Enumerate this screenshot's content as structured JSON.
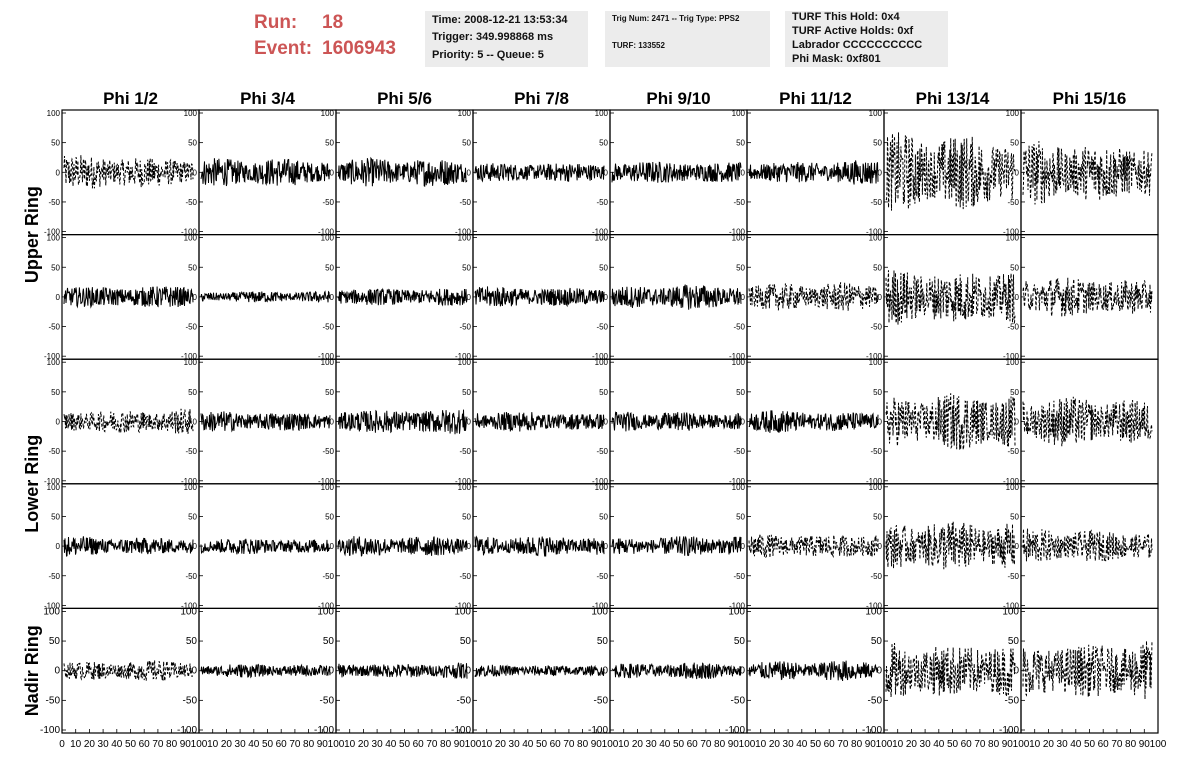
{
  "header": {
    "run_label": "Run:",
    "run_value": "18",
    "event_label": "Event:",
    "event_value": "1606943",
    "time_text": "Time: 2008-12-21 13:53:34",
    "trigger_text": "Trigger: 349.998868 ms",
    "priority_text": "Priority: 5 -- Queue: 5",
    "trig_num_text": "Trig Num: 2471 -- Trig Type: PPS2",
    "turf_text": "TURF: 133552",
    "turf_hold_text": "TURF This Hold: 0x4",
    "turf_active_text": "TURF Active Holds: 0xf",
    "labrador_text": "Labrador CCCCCCCCCC",
    "phi_mask_text": "Phi Mask: 0xf801",
    "accent_color": "#cc5555"
  },
  "chart_data": {
    "type": "line",
    "columns": [
      "Phi 1/2",
      "Phi 3/4",
      "Phi 5/6",
      "Phi 7/8",
      "Phi 9/10",
      "Phi 11/12",
      "Phi 13/14",
      "Phi 15/16"
    ],
    "rows": [
      "Upper Ring",
      "Upper Ring",
      "Lower Ring",
      "Lower Ring",
      "Nadir Ring"
    ],
    "row_titles": [
      {
        "text": "Upper Ring",
        "spans_rows": [
          0,
          1
        ]
      },
      {
        "text": "Lower Ring",
        "spans_rows": [
          2,
          3
        ]
      },
      {
        "text": "Nadir Ring",
        "spans_rows": [
          4
        ]
      }
    ],
    "xlim": [
      0,
      100
    ],
    "ylim": [
      -100,
      100
    ],
    "x_ticks": [
      "0",
      "10",
      "20",
      "30",
      "40",
      "50",
      "60",
      "70",
      "80",
      "90",
      "100"
    ],
    "y_ticks": [
      "100",
      "50",
      "0",
      "-50",
      "-100"
    ],
    "samples_per_trace": 260,
    "line_styles": [
      [
        "dashed",
        "solid",
        "solid",
        "solid",
        "solid",
        "solid",
        "dashed",
        "dashed"
      ],
      [
        "solid",
        "solid",
        "solid",
        "solid",
        "solid",
        "dashed",
        "dashed",
        "dashed"
      ],
      [
        "dashed",
        "solid",
        "solid",
        "solid",
        "solid",
        "solid",
        "dashed",
        "dashed"
      ],
      [
        "solid",
        "solid",
        "solid",
        "solid",
        "solid",
        "dashed",
        "dashed",
        "dashed"
      ],
      [
        "dashed",
        "solid",
        "solid",
        "solid",
        "solid",
        "solid",
        "dashed",
        "dashed"
      ]
    ],
    "amplitudes": [
      [
        25,
        25,
        25,
        20,
        22,
        22,
        55,
        45
      ],
      [
        22,
        10,
        18,
        20,
        22,
        20,
        45,
        30
      ],
      [
        18,
        18,
        25,
        18,
        18,
        20,
        40,
        35
      ],
      [
        18,
        15,
        18,
        18,
        18,
        20,
        35,
        25
      ],
      [
        15,
        12,
        15,
        12,
        15,
        18,
        45,
        45
      ]
    ]
  }
}
